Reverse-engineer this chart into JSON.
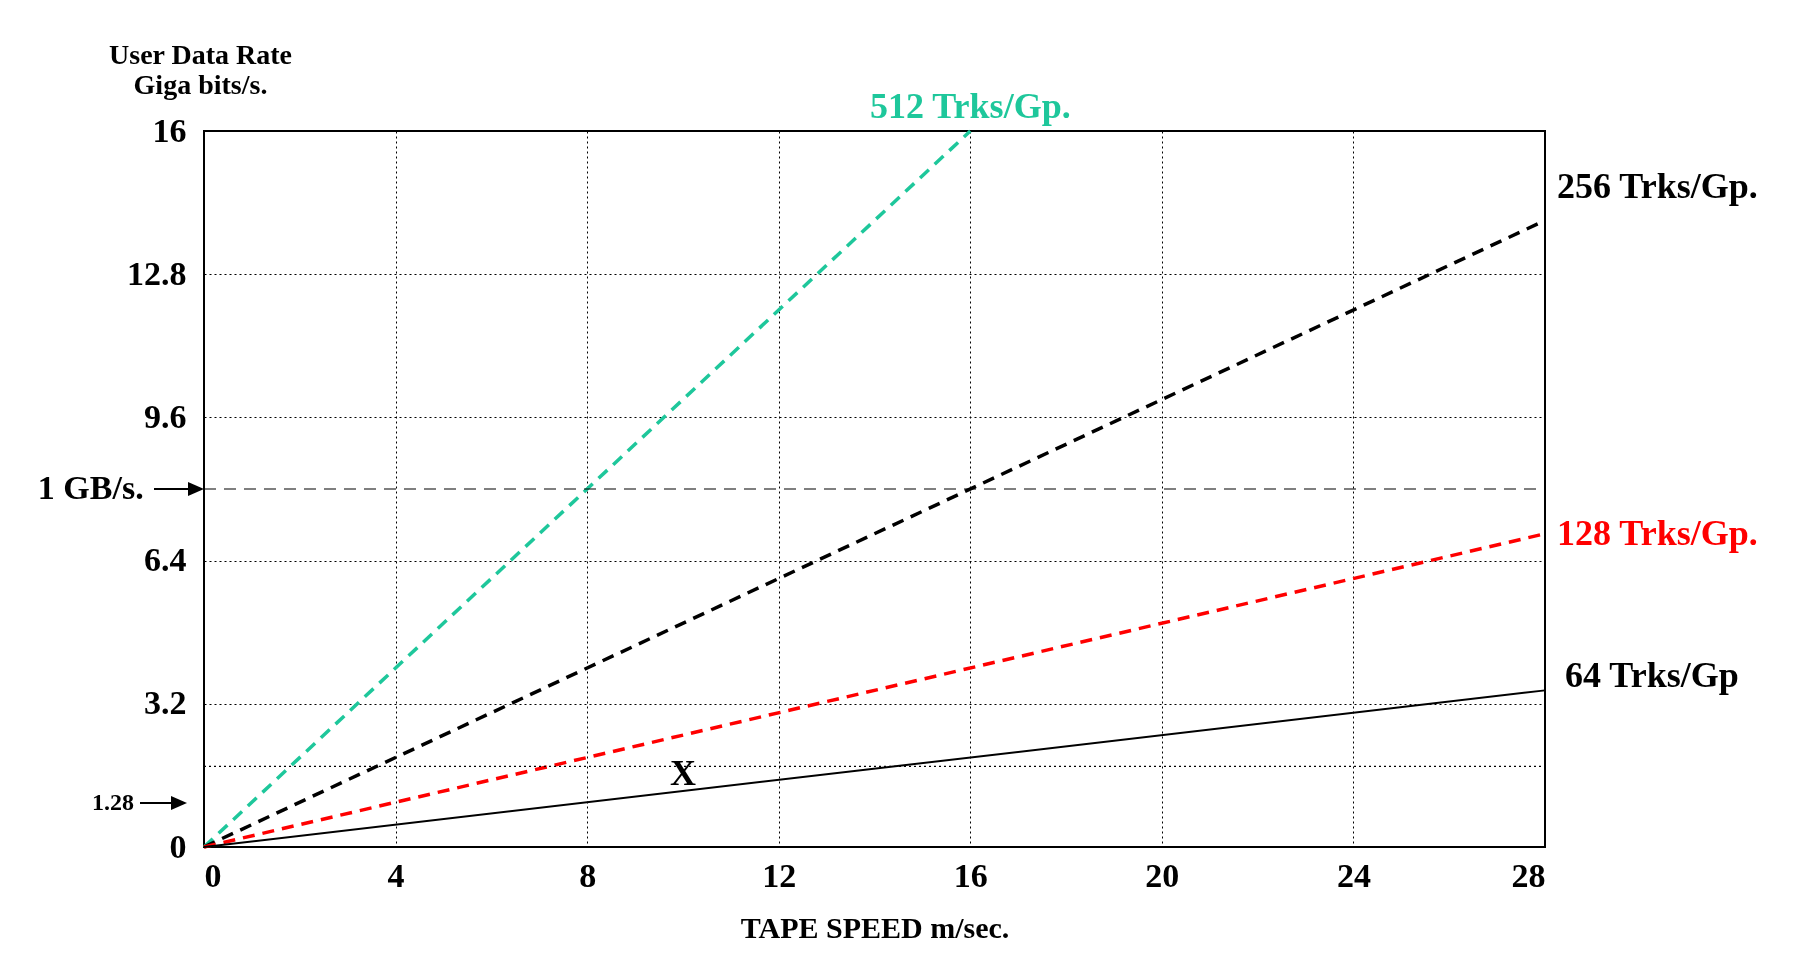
{
  "chart_data": {
    "type": "line",
    "xlabel": "TAPE SPEED   m/sec.",
    "ylabel": "User Data Rate\nGiga bits/s.",
    "x": [
      0,
      28
    ],
    "series": [
      {
        "name": "512 Trks/Gp.",
        "color": "#1ec79b",
        "x": [
          0,
          16
        ],
        "values": [
          0,
          16
        ],
        "line_style": "dashed"
      },
      {
        "name": "256 Trks/Gp.",
        "color": "#000000",
        "values": [
          0,
          14
        ],
        "line_style": "dashed"
      },
      {
        "name": "128 Trks/Gp.",
        "color": "#ff0000",
        "values": [
          0,
          7
        ],
        "line_style": "dashed"
      },
      {
        "name": "64 Trks/Gp",
        "color": "#000000",
        "values": [
          0,
          3.5
        ],
        "line_style": "solid"
      }
    ],
    "xlim": [
      0,
      28
    ],
    "xticks": [
      0,
      4,
      8,
      12,
      16,
      20,
      24,
      28
    ],
    "ylim": [
      0,
      16
    ],
    "yticks": [
      0,
      3.2,
      6.4,
      9.6,
      12.8,
      16
    ],
    "ref_lines": [
      {
        "axis": "y",
        "value": 8,
        "label": "1 GB/s.",
        "line_style": "dashed"
      },
      {
        "axis": "y",
        "value": 1.8,
        "line_style": "dotted"
      }
    ],
    "annotations": [
      {
        "text": "X",
        "x": 10,
        "y": 1.25
      },
      "1.28"
    ],
    "grid": true,
    "marker": "none"
  }
}
